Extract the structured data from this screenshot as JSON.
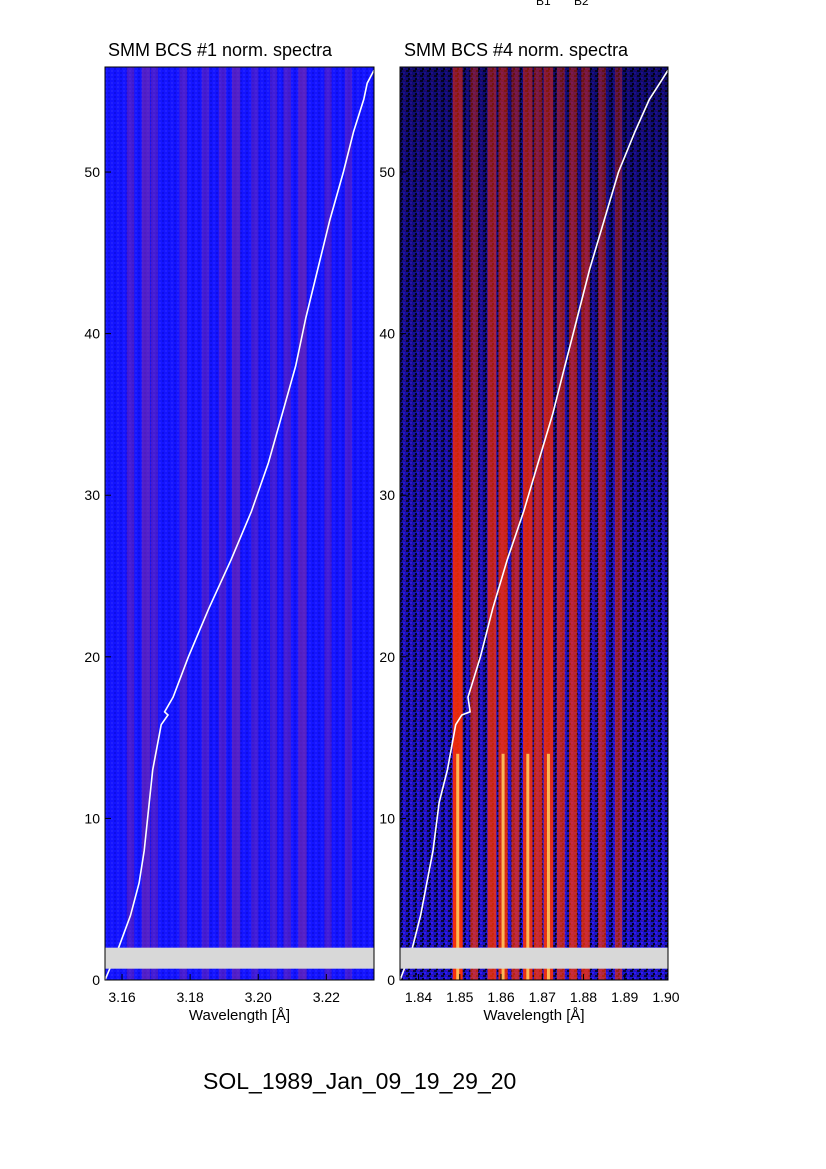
{
  "header": {
    "labels": [
      "B1",
      "B2"
    ]
  },
  "footer": {
    "title": "SOL_1989_Jan_09_19_29_20"
  },
  "colors": {
    "background_low": "#000000",
    "background_mid": "#1010ff",
    "line_high": "#ff2a00",
    "peak": "#ffff80",
    "curve": "#ffffff",
    "gap_band": "#d8d8d8"
  },
  "chart_data": [
    {
      "type": "heatmap",
      "title": "SMM BCS #1 norm. spectra",
      "xlabel": "Wavelength [Å]",
      "ylabel": "",
      "x_ticks": [
        "3.16",
        "3.18",
        "3.20",
        "3.22"
      ],
      "x_tick_values": [
        3.16,
        3.18,
        3.2,
        3.22
      ],
      "y_ticks": [
        "0",
        "10",
        "20",
        "30",
        "40",
        "50"
      ],
      "y_tick_values": [
        0,
        10,
        20,
        30,
        40,
        50
      ],
      "xlim": [
        3.155,
        3.234
      ],
      "ylim": [
        0,
        56.5
      ],
      "gap_band_y": [
        0.7,
        2.0
      ],
      "line_positions": [
        3.1625,
        3.167,
        3.1695,
        3.178,
        3.1845,
        3.1895,
        3.1935,
        3.199,
        3.2045,
        3.2085,
        3.213,
        3.2205,
        3.2265
      ],
      "line_strengths": [
        0.35,
        0.55,
        0.35,
        0.4,
        0.35,
        0.35,
        0.55,
        0.3,
        0.3,
        0.35,
        0.6,
        0.3,
        0.3
      ],
      "curve": {
        "x": [
          3.155,
          3.159,
          3.1625,
          3.165,
          3.1665,
          3.168,
          3.169,
          3.1715,
          3.1735,
          3.1725,
          3.175,
          3.1795,
          3.1855,
          3.192,
          3.198,
          3.203,
          3.207,
          3.211,
          3.214,
          3.2175,
          3.221,
          3.225,
          3.228,
          3.231,
          3.232,
          3.234
        ],
        "y": [
          0,
          2,
          4,
          6,
          8,
          11,
          13,
          15.8,
          16.4,
          16.6,
          17.5,
          20,
          23,
          26,
          29,
          32,
          35,
          38,
          41,
          44,
          47,
          50,
          52.5,
          54.5,
          55.5,
          56.3
        ]
      }
    },
    {
      "type": "heatmap",
      "title": "SMM BCS #4 norm. spectra",
      "xlabel": "Wavelength [Å]",
      "ylabel": "",
      "x_ticks": [
        "1.84",
        "1.85",
        "1.86",
        "1.87",
        "1.88",
        "1.89",
        "1.90"
      ],
      "x_tick_values": [
        1.84,
        1.85,
        1.86,
        1.87,
        1.88,
        1.89,
        1.9
      ],
      "y_ticks": [
        "0",
        "10",
        "20",
        "30",
        "40",
        "50"
      ],
      "y_tick_values": [
        0,
        10,
        20,
        30,
        40,
        50
      ],
      "xlim": [
        1.8355,
        1.9005
      ],
      "ylim": [
        0,
        56.5
      ],
      "gap_band_y": [
        0.7,
        2.0
      ],
      "line_positions": [
        1.8495,
        1.8535,
        1.8578,
        1.8605,
        1.8635,
        1.8665,
        1.869,
        1.8715,
        1.8745,
        1.8775,
        1.8805,
        1.8845,
        1.8885
      ],
      "line_strengths": [
        1.0,
        0.55,
        0.75,
        0.85,
        0.6,
        0.9,
        0.7,
        0.9,
        0.6,
        0.65,
        0.7,
        0.55,
        0.4
      ],
      "curve": {
        "x": [
          1.8355,
          1.8385,
          1.8405,
          1.842,
          1.8435,
          1.845,
          1.847,
          1.849,
          1.8505,
          1.8525,
          1.852,
          1.855,
          1.858,
          1.8615,
          1.8655,
          1.869,
          1.8725,
          1.8755,
          1.8785,
          1.8815,
          1.885,
          1.8885,
          1.8925,
          1.896,
          1.8985,
          1.9005
        ],
        "y": [
          0,
          2,
          4,
          6,
          8,
          11,
          13,
          15.8,
          16.4,
          16.6,
          17.5,
          20,
          23,
          26,
          29,
          32,
          35,
          38,
          41,
          44,
          47,
          50,
          52.5,
          54.5,
          55.5,
          56.3
        ]
      }
    }
  ]
}
